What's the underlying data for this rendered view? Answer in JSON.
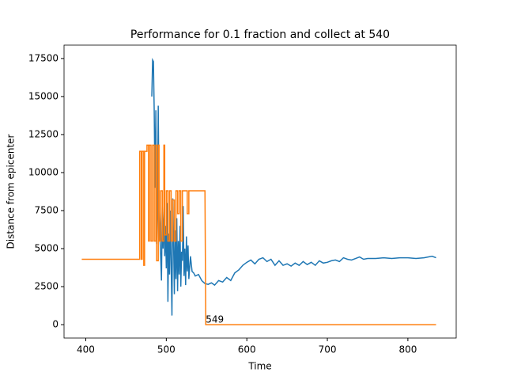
{
  "chart_data": {
    "type": "line",
    "title": "Performance for 0.1 fraction and collect at 540",
    "xlabel": "Time",
    "ylabel": "Distance from epicenter",
    "xlim": [
      373,
      860
    ],
    "ylim": [
      -880,
      18380
    ],
    "xticks": [
      400,
      500,
      600,
      700,
      800
    ],
    "yticks": [
      0,
      2500,
      5000,
      7500,
      10000,
      12500,
      15000,
      17500
    ],
    "grid": false,
    "series": [
      {
        "color": "#1f77b4",
        "x": [
          482,
          483,
          484,
          485,
          486,
          487,
          488,
          489,
          490,
          491,
          492,
          493,
          494,
          495,
          496,
          497,
          498,
          499,
          500,
          501,
          502,
          503,
          504,
          505,
          506,
          507,
          508,
          509,
          510,
          511,
          512,
          513,
          514,
          515,
          516,
          517,
          518,
          519,
          520,
          521,
          522,
          523,
          524,
          525,
          526,
          527,
          528,
          530,
          532,
          534,
          536,
          540,
          544,
          548,
          552,
          556,
          560,
          565,
          570,
          575,
          580,
          585,
          590,
          595,
          600,
          605,
          610,
          615,
          620,
          625,
          630,
          635,
          640,
          645,
          650,
          655,
          660,
          665,
          670,
          675,
          680,
          685,
          690,
          695,
          700,
          705,
          710,
          715,
          720,
          725,
          730,
          735,
          740,
          745,
          750,
          760,
          770,
          780,
          790,
          800,
          810,
          820,
          830,
          835
        ],
        "values": [
          15000,
          17400,
          17300,
          14000,
          9000,
          14100,
          5300,
          8000,
          14400,
          7500,
          6000,
          4500,
          2900,
          7800,
          5000,
          7400,
          4500,
          6500,
          3700,
          8000,
          1500,
          6000,
          3300,
          7500,
          4000,
          600,
          8300,
          5500,
          2000,
          6200,
          3000,
          7000,
          2200,
          5500,
          3300,
          6500,
          2500,
          4800,
          4200,
          7800,
          3200,
          5000,
          2600,
          5800,
          3500,
          5200,
          3000,
          4500,
          3500,
          3400,
          3200,
          3300,
          2900,
          2700,
          2650,
          2750,
          2600,
          2900,
          2800,
          3100,
          2900,
          3400,
          3600,
          3900,
          4100,
          4250,
          4000,
          4300,
          4400,
          4150,
          4300,
          3900,
          4200,
          3900,
          4000,
          3850,
          4050,
          3900,
          4150,
          3950,
          4100,
          3900,
          4200,
          4050,
          4100,
          4200,
          4250,
          4150,
          4400,
          4300,
          4250,
          4350,
          4450,
          4300,
          4350,
          4350,
          4400,
          4350,
          4400,
          4400,
          4350,
          4400,
          4500,
          4400
        ]
      },
      {
        "color": "#ff7f0e",
        "x": [
          395,
          467,
          467,
          469,
          469,
          470,
          470,
          472,
          472,
          473,
          473,
          476,
          476,
          478,
          478,
          479,
          479,
          481,
          481,
          483,
          483,
          485,
          485,
          487,
          487,
          488,
          488,
          490,
          490,
          491,
          491,
          493,
          493,
          495,
          495,
          497,
          497,
          498,
          498,
          500,
          500,
          502,
          502,
          504,
          504,
          506,
          506,
          508,
          508,
          510,
          510,
          512,
          512,
          514,
          514,
          516,
          516,
          518,
          518,
          520,
          520,
          526,
          526,
          528,
          528,
          548,
          549,
          835
        ],
        "values": [
          4300,
          4300,
          11400,
          11400,
          4300,
          4300,
          11400,
          11400,
          3900,
          3900,
          11400,
          11400,
          11800,
          11800,
          5500,
          5500,
          11800,
          11800,
          5500,
          5500,
          11800,
          11800,
          5500,
          5500,
          11800,
          11800,
          4200,
          4200,
          11800,
          11800,
          5500,
          5500,
          8800,
          8800,
          5500,
          5500,
          11800,
          11800,
          5900,
          5900,
          8800,
          8800,
          5500,
          5500,
          8800,
          8800,
          5500,
          5500,
          8200,
          8200,
          5500,
          5500,
          8800,
          8800,
          7300,
          7300,
          8800,
          8800,
          5500,
          5500,
          8800,
          8800,
          7300,
          7300,
          8800,
          8800,
          0,
          0
        ]
      }
    ],
    "annotations": [
      {
        "text": "549",
        "x": 549,
        "y": 0
      }
    ]
  }
}
